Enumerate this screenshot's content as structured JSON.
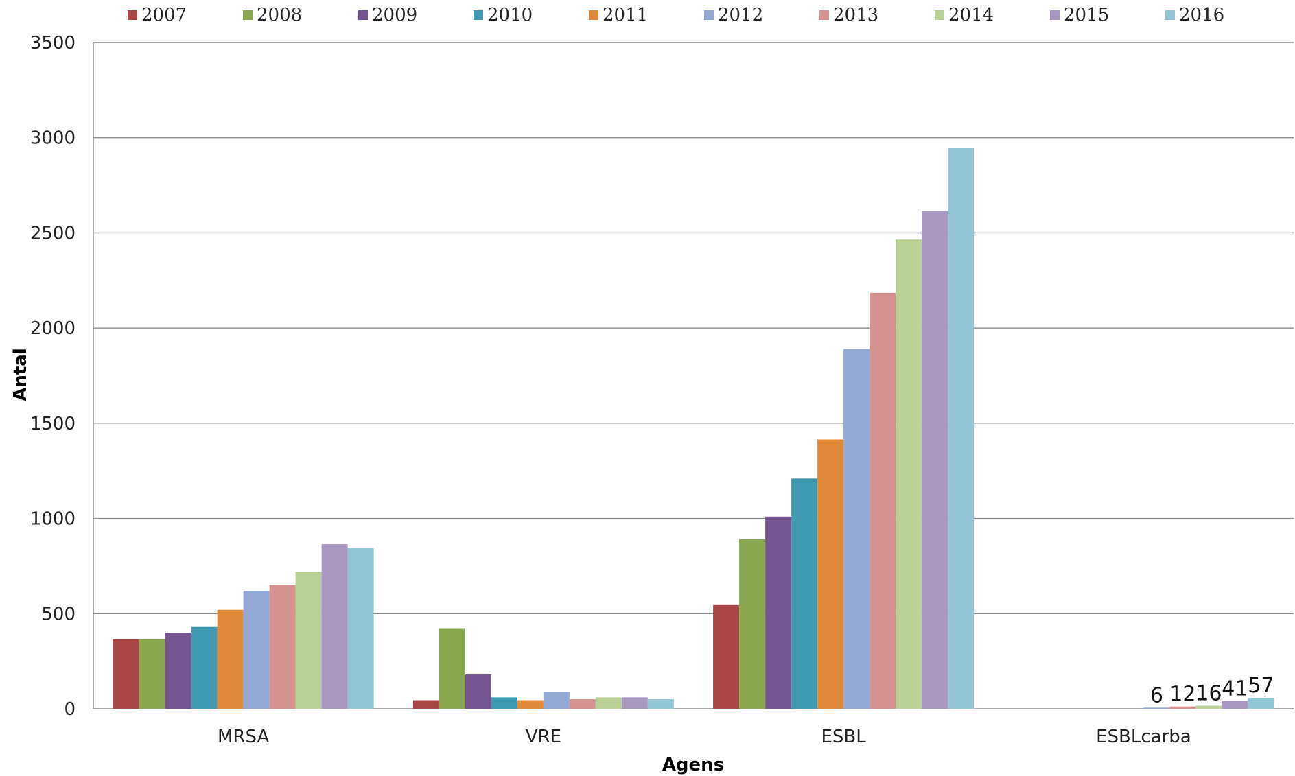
{
  "chart_data": {
    "type": "bar",
    "xlabel": "Agens",
    "ylabel": "Antal",
    "ylim": [
      0,
      3500
    ],
    "yticks": [
      0,
      500,
      1000,
      1500,
      2000,
      2500,
      3000,
      3500
    ],
    "grid": true,
    "legend_position": "top",
    "categories": [
      "MRSA",
      "VRE",
      "ESBL",
      "ESBLcarba"
    ],
    "series": [
      {
        "name": "2007",
        "color": "#A84545",
        "values": [
          365,
          45,
          545,
          0
        ]
      },
      {
        "name": "2008",
        "color": "#87A64E",
        "values": [
          365,
          420,
          890,
          0
        ]
      },
      {
        "name": "2009",
        "color": "#735691",
        "values": [
          400,
          180,
          1010,
          0
        ]
      },
      {
        "name": "2010",
        "color": "#3F99B1",
        "values": [
          430,
          60,
          1210,
          0
        ]
      },
      {
        "name": "2011",
        "color": "#E08A3C",
        "values": [
          520,
          45,
          1415,
          0
        ]
      },
      {
        "name": "2012",
        "color": "#93A9D3",
        "values": [
          620,
          90,
          1890,
          6
        ]
      },
      {
        "name": "2013",
        "color": "#D59290",
        "values": [
          650,
          50,
          2185,
          12
        ]
      },
      {
        "name": "2014",
        "color": "#BAD196",
        "values": [
          720,
          60,
          2465,
          16
        ]
      },
      {
        "name": "2015",
        "color": "#A898C1",
        "values": [
          865,
          60,
          2615,
          41
        ]
      },
      {
        "name": "2016",
        "color": "#92C6D6",
        "values": [
          845,
          50,
          2945,
          57
        ]
      }
    ],
    "data_labels": [
      {
        "category": "ESBLcarba",
        "series": "2012",
        "text": "6"
      },
      {
        "category": "ESBLcarba",
        "series": "2013",
        "text": "12"
      },
      {
        "category": "ESBLcarba",
        "series": "2014",
        "text": "16"
      },
      {
        "category": "ESBLcarba",
        "series": "2015",
        "text": "41"
      },
      {
        "category": "ESBLcarba",
        "series": "2016",
        "text": "57"
      }
    ]
  }
}
